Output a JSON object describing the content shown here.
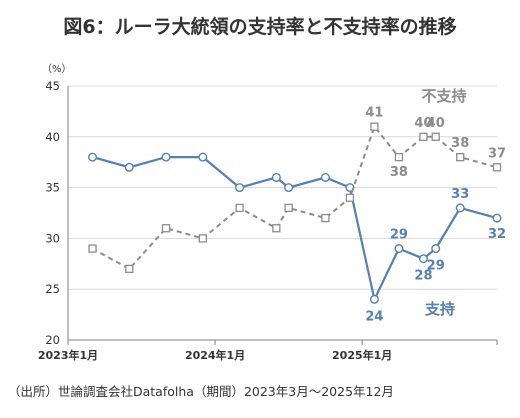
{
  "chart_data": {
    "type": "line",
    "title": "図6：ルーラ大統領の支持率と不支持率の推移",
    "source": "（出所）世論調査会社Datafolha（期間）2023年3月～2025年12月",
    "y_unit": "（%）",
    "ylim": [
      20,
      45
    ],
    "yticks": [
      "20",
      "25",
      "30",
      "35",
      "40",
      "45"
    ],
    "xlim": [
      "2023-01",
      "2025-12"
    ],
    "xticks": [
      {
        "x": "2023-01",
        "label": "2023年1月"
      },
      {
        "x": "2024-01",
        "label": "2024年1月"
      },
      {
        "x": "2025-01",
        "label": "2025年1月"
      }
    ],
    "grid": true,
    "series": [
      {
        "name": "支持",
        "color": "#5580b0",
        "line_style": "solid",
        "label_position": "below-right",
        "points": [
          {
            "x": "2023-03",
            "y": 38
          },
          {
            "x": "2023-06",
            "y": 37
          },
          {
            "x": "2023-09",
            "y": 38
          },
          {
            "x": "2023-12",
            "y": 38
          },
          {
            "x": "2024-03",
            "y": 35
          },
          {
            "x": "2024-06",
            "y": 36
          },
          {
            "x": "2024-07",
            "y": 35
          },
          {
            "x": "2024-10",
            "y": 36
          },
          {
            "x": "2024-12",
            "y": 35
          },
          {
            "x": "2025-02",
            "y": 24,
            "label": "24"
          },
          {
            "x": "2025-04",
            "y": 29,
            "label": "29"
          },
          {
            "x": "2025-06",
            "y": 28,
            "label": "28"
          },
          {
            "x": "2025-07",
            "y": 29,
            "label": "29"
          },
          {
            "x": "2025-09",
            "y": 33,
            "label": "33"
          },
          {
            "x": "2025-12",
            "y": 32,
            "label": "32"
          }
        ]
      },
      {
        "name": "不支持",
        "color": "#8c8c8c",
        "line_style": "dashed",
        "label_position": "above",
        "points": [
          {
            "x": "2023-03",
            "y": 29
          },
          {
            "x": "2023-06",
            "y": 27
          },
          {
            "x": "2023-09",
            "y": 31
          },
          {
            "x": "2023-12",
            "y": 30
          },
          {
            "x": "2024-03",
            "y": 33
          },
          {
            "x": "2024-06",
            "y": 31
          },
          {
            "x": "2024-07",
            "y": 33
          },
          {
            "x": "2024-10",
            "y": 32
          },
          {
            "x": "2024-12",
            "y": 34
          },
          {
            "x": "2025-02",
            "y": 41,
            "label": "41"
          },
          {
            "x": "2025-04",
            "y": 38,
            "label": "38"
          },
          {
            "x": "2025-06",
            "y": 40,
            "label": "40"
          },
          {
            "x": "2025-07",
            "y": 40,
            "label": "40"
          },
          {
            "x": "2025-09",
            "y": 38,
            "label": "38"
          },
          {
            "x": "2025-12",
            "y": 37,
            "label": "37"
          }
        ]
      }
    ]
  }
}
